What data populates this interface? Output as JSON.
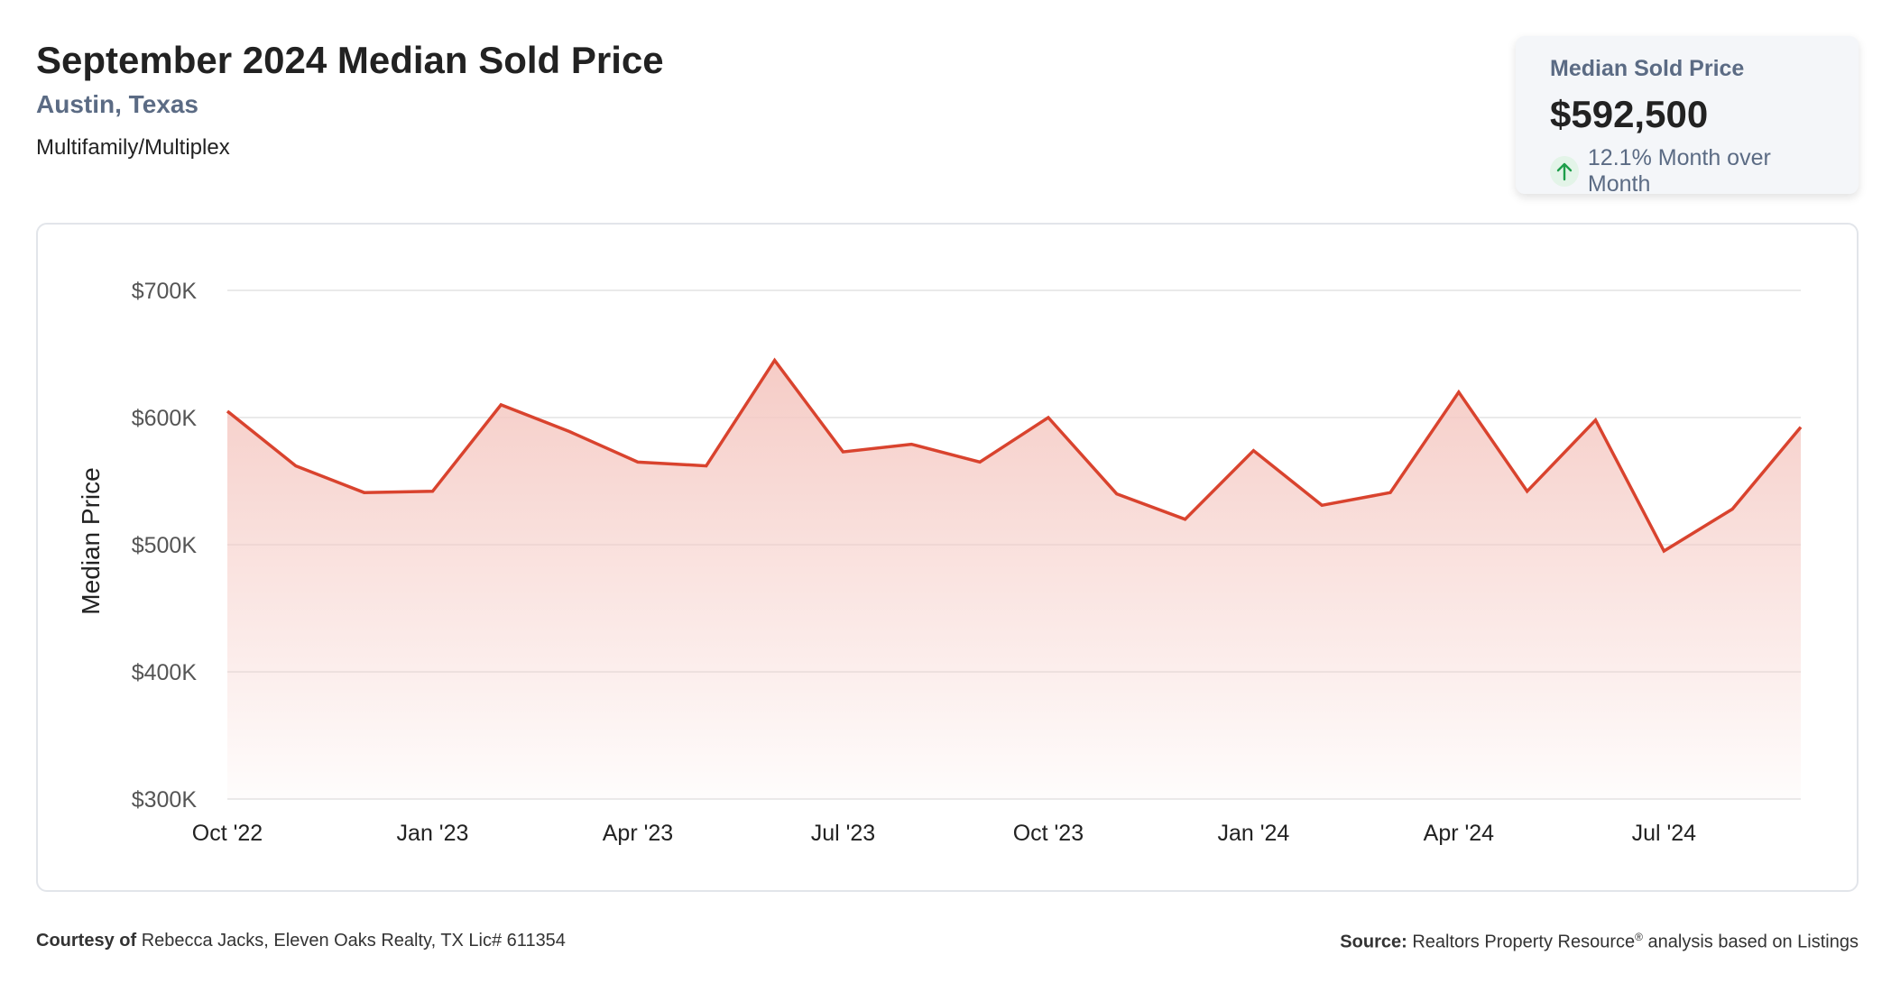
{
  "header": {
    "title": "September 2024 Median Sold Price",
    "location": "Austin, Texas",
    "property_type": "Multifamily/Multiplex"
  },
  "summary": {
    "label": "Median Sold Price",
    "value": "$592,500",
    "change": "12.1% Month over Month",
    "direction": "up",
    "arrow_icon": "arrow-up-icon",
    "arrow_color": "#1e9e4a"
  },
  "footer": {
    "courtesy_label": "Courtesy of",
    "courtesy_text": "Rebecca Jacks, Eleven Oaks Realty, TX Lic# 611354",
    "source_label": "Source:",
    "source_text": "Realtors Property Resource",
    "source_mark": "®",
    "source_suffix": "analysis based on Listings"
  },
  "colors": {
    "line": "#d9432e",
    "fill_top": "#f5c9c3",
    "grid": "#e3e3e3",
    "accent_subtitle": "#5b6b84"
  },
  "chart_data": {
    "type": "area",
    "ylabel": "Median Price",
    "xlabel": "",
    "ylim": [
      300000,
      700000
    ],
    "y_ticks": [
      300000,
      400000,
      500000,
      600000,
      700000
    ],
    "y_tick_labels": [
      "$300K",
      "$400K",
      "$500K",
      "$600K",
      "$700K"
    ],
    "x_tick_labels": [
      "Oct '22",
      "Jan '23",
      "Apr '23",
      "Jul '23",
      "Oct '23",
      "Jan '24",
      "Apr '24",
      "Jul '24"
    ],
    "x_tick_indices": [
      0,
      3,
      6,
      9,
      12,
      15,
      18,
      21
    ],
    "grid": true,
    "x": [
      "Oct '22",
      "Nov '22",
      "Dec '22",
      "Jan '23",
      "Feb '23",
      "Mar '23",
      "Apr '23",
      "May '23",
      "Jun '23",
      "Jul '23",
      "Aug '23",
      "Sep '23",
      "Oct '23",
      "Nov '23",
      "Dec '23",
      "Jan '24",
      "Feb '24",
      "Mar '24",
      "Apr '24",
      "May '24",
      "Jun '24",
      "Jul '24",
      "Aug '24",
      "Sep '24"
    ],
    "values": [
      605000,
      562000,
      541000,
      542000,
      610000,
      589000,
      565000,
      562000,
      645000,
      573000,
      579000,
      565000,
      600000,
      540000,
      520000,
      574000,
      531000,
      541000,
      620000,
      542000,
      598000,
      495000,
      528000,
      592500
    ]
  }
}
